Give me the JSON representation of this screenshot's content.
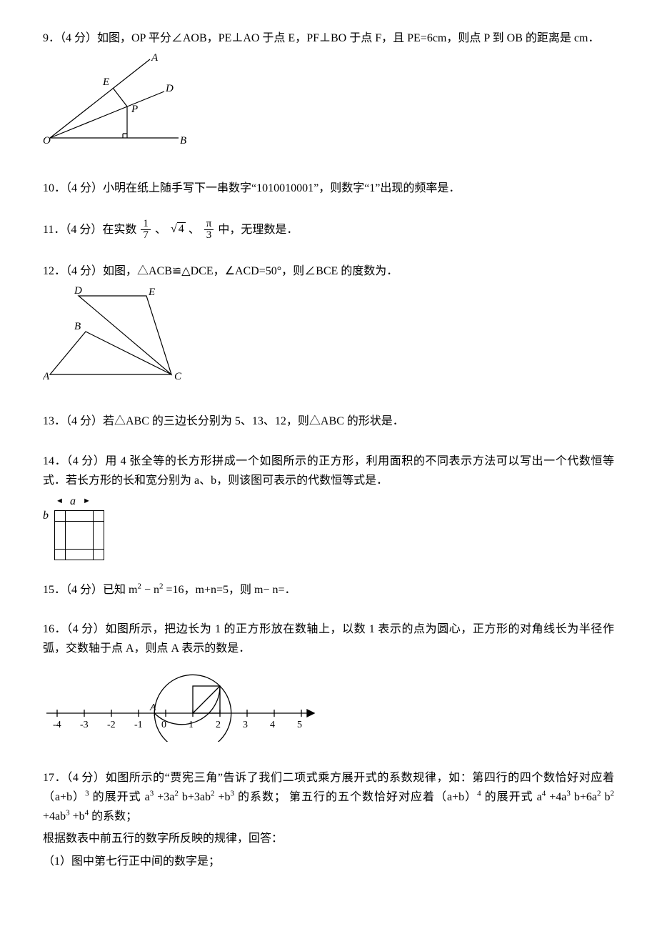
{
  "problems": {
    "p9": {
      "text": "9．（4 分）如图，OP 平分∠AOB，PE⊥AO 于点 E，PF⊥BO 于点 F，且 PE=6cm，则点 P 到 OB 的距离是 cm．",
      "labels": {
        "A": "A",
        "E": "E",
        "D": "D",
        "P": "P",
        "O": "O",
        "B": "B"
      },
      "stroke": "#000000"
    },
    "p10": {
      "text": "10．（4 分）小明在纸上随手写下一串数字“1010010001”，则数字“1”出现的频率是．"
    },
    "p11": {
      "pre": "11．（4 分）在实数",
      "frac1_num": "1",
      "frac1_den": "7",
      "mid1": "、",
      "sqrt_val": "4",
      "mid2": "、",
      "frac2_num": "π",
      "frac2_den": "3",
      "post": "中，无理数是．"
    },
    "p12": {
      "text": "12．（4 分）如图，△ACB≌△DCE，∠ACD=50°，则∠BCE 的度数为．",
      "labels": {
        "D": "D",
        "E": "E",
        "B": "B",
        "A": "A",
        "C": "C"
      },
      "stroke": "#000000"
    },
    "p13": {
      "text": "13．（4 分）若△ABC 的三边长分别为 5、13、12，则△ABC 的形状是．"
    },
    "p14": {
      "text": "14．（4 分）用 4 张全等的长方形拼成一个如图所示的正方形，利用面积的不同表示方法可以写出一个代数恒等式．若长方形的长和宽分别为 a、b，则该图可表示的代数恒等式是．",
      "label_a": "a",
      "label_b": "b"
    },
    "p15": {
      "pre": "15．（4 分）已知 m",
      "sq1": "2",
      "mid1": "− n",
      "sq2": "2",
      "mid2": "=16，m+n=5，则 m− n=．"
    },
    "p16": {
      "text": "16．（4 分）如图所示，把边长为 1 的正方形放在数轴上，以数 1 表示的点为圆心，正方形的对角线长为半径作弧，交数轴于点 A，则点 A 表示的数是．",
      "ticks": [
        "-4",
        "-3",
        "-2",
        "-1",
        "0",
        "1",
        "2",
        "3",
        "4",
        "5"
      ],
      "label_A": "A",
      "stroke": "#000000"
    },
    "p17": {
      "l1_a": "17．（4 分）如图所示的“贾宪三角”告诉了我们二项式乘方展开式的系数规律，如：第四行的四个数恰好对应着（a+b）",
      "l1_b": " 的展开式 a",
      "l1_c": "+3a",
      "l1_d": "b+3ab",
      "l1_e": "+b",
      "l1_f": " 的系数；  第五行的五个数恰好对应着（a+b）",
      "l1_g": " 的展开式 a",
      "l1_h": "+4a",
      "l1_i": "b+6a",
      "l1_j": "b",
      "l1_k": "+4ab",
      "l1_l": "+b",
      "l1_m": " 的系数；",
      "l2": "根据数表中前五行的数字所反映的规律，回答：",
      "l3": "（1）图中第七行正中间的数字是；"
    }
  }
}
